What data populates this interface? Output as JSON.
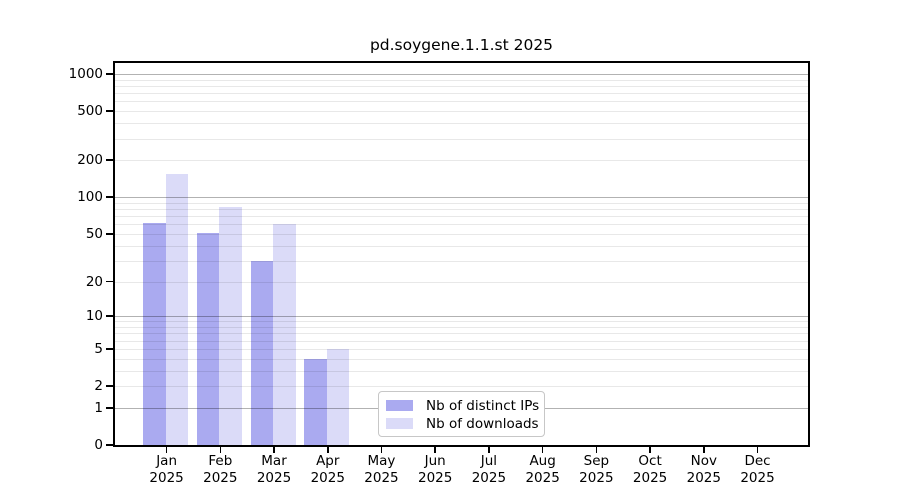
{
  "chart_data": {
    "type": "bar",
    "title": "pd.soygene.1.1.st 2025",
    "categories": [
      "Jan 2025",
      "Feb 2025",
      "Mar 2025",
      "Apr 2025",
      "May 2025",
      "Jun 2025",
      "Jul 2025",
      "Aug 2025",
      "Sep 2025",
      "Oct 2025",
      "Nov 2025",
      "Dec 2025"
    ],
    "series": [
      {
        "name": "Nb of distinct IPs",
        "color": "#aaaaf0",
        "values": [
          62,
          51,
          30,
          4,
          0,
          0,
          0,
          0,
          0,
          0,
          0,
          0
        ]
      },
      {
        "name": "Nb of downloads",
        "color": "#dbdbf8",
        "values": [
          154,
          83,
          60,
          5,
          0,
          0,
          0,
          0,
          0,
          0,
          0,
          0
        ]
      }
    ],
    "yticks": [
      0,
      1,
      2,
      5,
      10,
      20,
      50,
      100,
      200,
      500,
      1000
    ],
    "y_scale": "log1p",
    "ylim": [
      0,
      1300
    ],
    "xlabel": "",
    "ylabel": "",
    "grid": "horizontal major (1,10,100,1000) + minor (2-9 per decade)",
    "legend_position": "inside bottom-center"
  },
  "colors": {
    "bar_distinct_ips": "#aaaaf0",
    "bar_downloads": "#dbdbf8",
    "axis": "#000000",
    "background": "#ffffff"
  }
}
